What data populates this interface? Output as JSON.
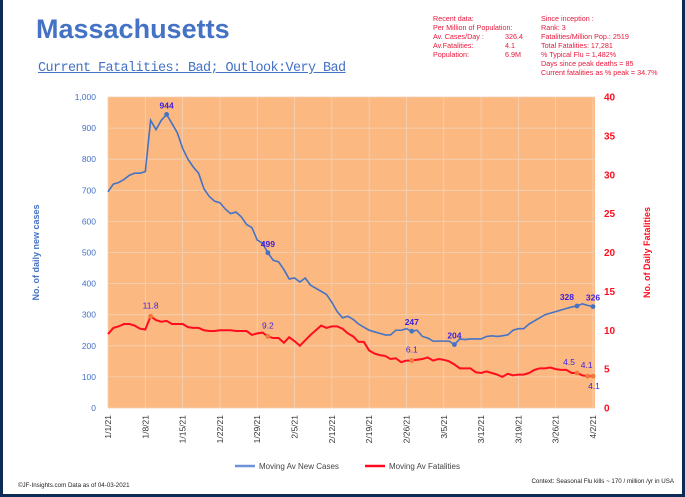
{
  "header": {
    "title": "Massachusetts",
    "subtitle": "Current Fatalities: Bad; Outlook:Very Bad"
  },
  "recent": {
    "heading": "Recent data:",
    "subheading": "Per Million of Population:",
    "rows": [
      {
        "label": "Av. Cases/Day :",
        "value": "326.4"
      },
      {
        "label": "Av.Fatalities:",
        "value": "4.1"
      },
      {
        "label": "Population:",
        "value": "6.9M"
      }
    ]
  },
  "inception": {
    "heading": "Since inception :",
    "lines": [
      "Rank: 3",
      "Fatalities/Million Pop.: 2519",
      "Total Fatalities: 17,281",
      "% Typical Flu = 1,482%",
      "Days since peak deaths = 85",
      "Current fatalities as % peak = 34.7%"
    ]
  },
  "footer": {
    "left": "©JF-Insights.com  Data as of 04-03-2021",
    "right": "Context: Seasonal Flu kills ~ 170 / million /yr in USA"
  },
  "colors": {
    "cases": "#4472c4",
    "fatalities": "#ff0d1f",
    "plot_bg": "#fbb880",
    "grid": "#f3d3b8",
    "label": "#3b1fe0"
  },
  "chart_data": {
    "type": "line",
    "x_start": "1/1/21",
    "x_tick_labels": [
      "1/1/21",
      "1/8/21",
      "1/15/21",
      "1/22/21",
      "1/29/21",
      "2/5/21",
      "2/12/21",
      "2/19/21",
      "2/26/21",
      "3/5/21",
      "3/12/21",
      "3/19/21",
      "3/26/21",
      "4/2/21"
    ],
    "ylabel_left": "No. of daily new  cases",
    "ylabel_right": "No. of Daily Fatalities",
    "ylim_left": [
      0,
      1000
    ],
    "ylim_right": [
      0,
      40
    ],
    "yticks_left": [
      "0",
      "100",
      "200",
      "300",
      "400",
      "500",
      "600",
      "700",
      "800",
      "900",
      "1,000"
    ],
    "yticks_right": [
      "0",
      "5",
      "10",
      "15",
      "20",
      "25",
      "30",
      "35",
      "40"
    ],
    "grid": true,
    "legend_position": "bottom",
    "series": [
      {
        "name": "Moving Av New Cases",
        "axis": "left",
        "values": [
          695,
          720,
          725,
          735,
          748,
          755,
          755,
          760,
          925,
          895,
          925,
          944,
          915,
          885,
          835,
          800,
          775,
          755,
          705,
          680,
          665,
          660,
          640,
          625,
          630,
          615,
          590,
          580,
          540,
          530,
          499,
          475,
          470,
          445,
          415,
          418,
          405,
          418,
          395,
          385,
          375,
          365,
          340,
          310,
          290,
          295,
          285,
          270,
          260,
          250,
          245,
          240,
          235,
          235,
          250,
          250,
          255,
          247,
          250,
          230,
          225,
          215,
          215,
          215,
          215,
          204,
          222,
          220,
          222,
          222,
          222,
          230,
          232,
          230,
          232,
          235,
          250,
          255,
          255,
          270,
          280,
          290,
          300,
          305,
          310,
          315,
          320,
          325,
          328,
          335,
          330,
          326
        ],
        "labels": [
          {
            "day": 11,
            "text": "944"
          },
          {
            "day": 30,
            "text": "499"
          },
          {
            "day": 57,
            "text": "247"
          },
          {
            "day": 65,
            "text": "204"
          },
          {
            "day": 88,
            "text": "328"
          },
          {
            "day": 91,
            "text": "326"
          }
        ]
      },
      {
        "name": "Moving Av Fatalities",
        "axis": "right",
        "values": [
          9.5,
          10.3,
          10.5,
          10.8,
          10.8,
          10.6,
          10.2,
          10.1,
          11.8,
          11.3,
          11.1,
          11.2,
          10.8,
          10.8,
          10.8,
          10.4,
          10.3,
          10.3,
          10.0,
          9.9,
          9.9,
          10.0,
          10.0,
          10.0,
          9.9,
          9.9,
          9.9,
          9.4,
          9.6,
          9.7,
          9.2,
          9.0,
          9.0,
          8.4,
          9.1,
          8.6,
          8.0,
          8.7,
          9.4,
          10.0,
          10.6,
          10.3,
          10.5,
          10.5,
          10.2,
          9.6,
          9.2,
          8.5,
          8.5,
          7.4,
          7.0,
          6.8,
          6.7,
          6.3,
          6.4,
          5.9,
          6.1,
          6.1,
          6.2,
          6.3,
          6.5,
          6.1,
          6.3,
          6.2,
          6.0,
          5.6,
          5.1,
          5.1,
          5.1,
          4.6,
          4.5,
          4.7,
          4.5,
          4.3,
          4.0,
          4.4,
          4.2,
          4.3,
          4.3,
          4.5,
          4.9,
          5.1,
          5.1,
          5.2,
          5.0,
          4.9,
          4.9,
          4.5,
          4.5,
          4.2,
          4.1,
          4.1
        ],
        "labels": [
          {
            "day": 8,
            "text": "11.8"
          },
          {
            "day": 30,
            "text": "9.2"
          },
          {
            "day": 57,
            "text": "6.1"
          },
          {
            "day": 88,
            "text": "4.5"
          },
          {
            "day": 90,
            "text": "4.1"
          },
          {
            "day": 91,
            "text": "4.1"
          }
        ]
      }
    ]
  }
}
